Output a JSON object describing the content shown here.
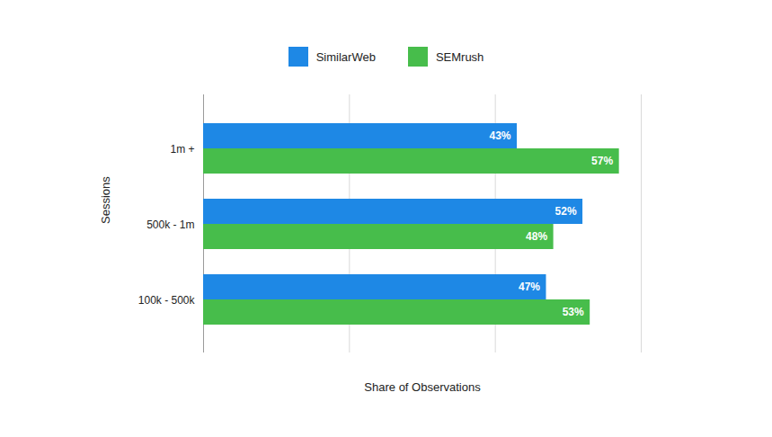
{
  "chart_data": {
    "type": "bar",
    "orientation": "horizontal",
    "categories": [
      "1m +",
      "500k - 1m",
      "100k - 500k"
    ],
    "series": [
      {
        "name": "SimilarWeb",
        "color": "#1e88e5",
        "values": [
          43,
          52,
          47
        ],
        "value_labels": [
          "43%",
          "52%",
          "47%"
        ]
      },
      {
        "name": "SEMrush",
        "color": "#47bd4b",
        "values": [
          57,
          48,
          53
        ],
        "value_labels": [
          "57%",
          "48%",
          "53%"
        ]
      }
    ],
    "xlabel": "Share of Observations",
    "ylabel": "Sessions",
    "xlim": [
      0,
      60
    ],
    "xticks": [
      0,
      20,
      40,
      60
    ],
    "grid": true,
    "legend": "top",
    "data_labels": true,
    "tick_labels": "y"
  }
}
